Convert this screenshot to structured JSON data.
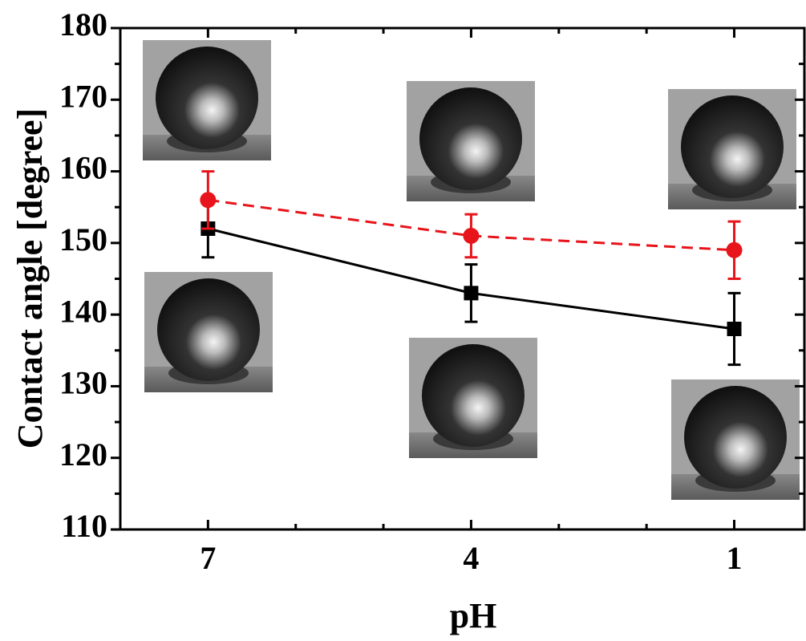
{
  "chart_data": {
    "type": "line",
    "x_label": "pH",
    "y_label": "Contact angle [degree]",
    "x": [
      7,
      4,
      1
    ],
    "xlim": [
      8,
      0.2
    ],
    "xticks": [
      7,
      4,
      1
    ],
    "xminorticks": [
      6,
      5,
      3,
      2
    ],
    "ylim": [
      110,
      180
    ],
    "yticks": [
      110,
      120,
      130,
      140,
      150,
      160,
      170,
      180
    ],
    "yminorticks": [
      115,
      125,
      135,
      145,
      155,
      165,
      175
    ],
    "series": [
      {
        "color": "#000000",
        "marker": "square",
        "linestyle": "solid",
        "values": [
          152,
          143,
          138
        ],
        "errors": [
          4,
          4,
          5
        ]
      },
      {
        "color": "#e8141b",
        "marker": "circle",
        "linestyle": "dashed",
        "values": [
          156,
          151,
          149
        ],
        "errors": [
          4,
          3,
          4
        ]
      }
    ]
  }
}
